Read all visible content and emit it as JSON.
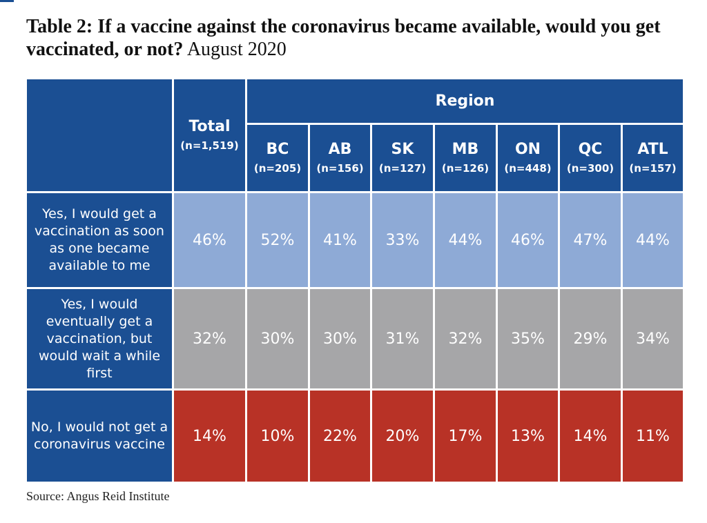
{
  "chart_data": {
    "type": "table",
    "title": "Table 2: If a vaccine against the coronavirus became available, would you get vaccinated, or not?",
    "subtitle": "August 2020",
    "group_header": "Region",
    "columns": [
      {
        "label": "Total",
        "n": "(n=1,519)"
      },
      {
        "label": "BC",
        "n": "(n=205)"
      },
      {
        "label": "AB",
        "n": "(n=156)"
      },
      {
        "label": "SK",
        "n": "(n=127)"
      },
      {
        "label": "MB",
        "n": "(n=126)"
      },
      {
        "label": "ON",
        "n": "(n=448)"
      },
      {
        "label": "QC",
        "n": "(n=300)"
      },
      {
        "label": "ATL",
        "n": "(n=157)"
      }
    ],
    "rows": [
      {
        "label": "Yes, I would get a vaccination as soon as one became available to me",
        "values": [
          "46%",
          "52%",
          "41%",
          "33%",
          "44%",
          "46%",
          "47%",
          "44%"
        ]
      },
      {
        "label": "Yes, I would eventually get a vaccination, but would wait a while first",
        "values": [
          "32%",
          "30%",
          "30%",
          "31%",
          "32%",
          "35%",
          "29%",
          "34%"
        ]
      },
      {
        "label": "No, I would not get a coronavirus vaccine",
        "values": [
          "14%",
          "10%",
          "22%",
          "20%",
          "17%",
          "13%",
          "14%",
          "11%"
        ]
      }
    ],
    "source": "Source: Angus Reid Institute"
  },
  "colors": {
    "header_blue": "#1b4f93",
    "row_light_blue": "#8eaad6",
    "row_gray": "#a6a6a8",
    "row_red": "#b83226"
  }
}
